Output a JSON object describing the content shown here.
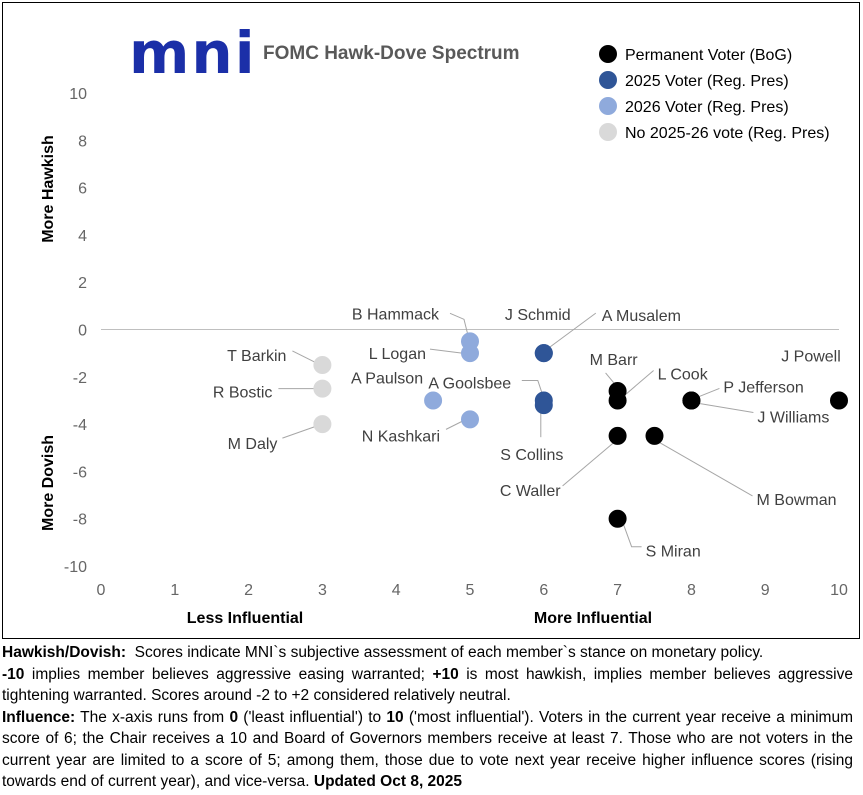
{
  "chart_data": {
    "type": "scatter",
    "title": "FOMC Hawk-Dove Spectrum",
    "logo_text": "mni",
    "xlabel_left": "Less Influential",
    "xlabel_right": "More Influential",
    "ylabel_top": "More Hawkish",
    "ylabel_bottom": "More Dovish",
    "xlim": [
      0,
      10
    ],
    "ylim": [
      -10,
      10
    ],
    "x_ticks": [
      0,
      1,
      2,
      3,
      4,
      5,
      6,
      7,
      8,
      9,
      10
    ],
    "y_ticks": [
      10,
      8,
      6,
      4,
      2,
      0,
      -2,
      -4,
      -6,
      -8,
      -10
    ],
    "legend_position": "top-right",
    "series": [
      {
        "name": "Permanent Voter (BoG)",
        "color": "#000000",
        "points": [
          {
            "label": "J Powell",
            "x": 10,
            "y": -3
          },
          {
            "label": "P Jefferson",
            "x": 8,
            "y": -3
          },
          {
            "label": "J Williams",
            "x": 8,
            "y": -3
          },
          {
            "label": "L Cook",
            "x": 7,
            "y": -3
          },
          {
            "label": "M Barr",
            "x": 7,
            "y": -2.6
          },
          {
            "label": "C Waller",
            "x": 7,
            "y": -4.5
          },
          {
            "label": "M Bowman",
            "x": 7.5,
            "y": -4.5
          },
          {
            "label": "S Miran",
            "x": 7,
            "y": -8
          }
        ]
      },
      {
        "name": "2025 Voter (Reg. Pres)",
        "color": "#2f5597",
        "points": [
          {
            "label": "J Schmid",
            "x": 6,
            "y": -1
          },
          {
            "label": "A Musalem",
            "x": 6,
            "y": -1
          },
          {
            "label": "A Goolsbee",
            "x": 6,
            "y": -3
          },
          {
            "label": "S Collins",
            "x": 6,
            "y": -3.2
          }
        ]
      },
      {
        "name": "2026 Voter (Reg. Pres)",
        "color": "#8faadc",
        "points": [
          {
            "label": "B Hammack",
            "x": 5,
            "y": -0.5
          },
          {
            "label": "L Logan",
            "x": 5,
            "y": -1
          },
          {
            "label": "A Paulson",
            "x": 4.5,
            "y": -3
          },
          {
            "label": "N Kashkari",
            "x": 5,
            "y": -3.8
          }
        ]
      },
      {
        "name": "No 2025-26 vote (Reg. Pres)",
        "color": "#d9d9d9",
        "points": [
          {
            "label": "T Barkin",
            "x": 3,
            "y": -1.5
          },
          {
            "label": "R Bostic",
            "x": 3,
            "y": -2.5
          },
          {
            "label": "M Daly",
            "x": 3,
            "y": -4
          }
        ]
      }
    ]
  },
  "notes": {
    "p1_head": "Hawkish/Dovish:",
    "p1_text": "Scores indicate MNI`s subjective assessment of each member`s stance on monetary policy.",
    "p2_neg": "-10",
    "p2_a": "implies member believes aggressive easing warranted;",
    "p2_pos": "+10",
    "p2_b": "is most hawkish, implies member believes aggressive tightening warranted. Scores around -2 to +2 considered relatively neutral.",
    "p3_head": "Influence:",
    "p3_a": "The x-axis runs from",
    "p3_zero": "0",
    "p3_b": "('least influential') to",
    "p3_ten": "10",
    "p3_c": "('most influential'). Voters in the current year receive a minimum score of 6; the Chair receives a 10 and Board of Governors members receive at least 7. Those who are not voters in the current year are limited to a score of 5; among them, those due to vote next year receive higher influence scores (rising towards end of current year), and vice-versa.",
    "p3_updated": "Updated Oct 8, 2025"
  }
}
